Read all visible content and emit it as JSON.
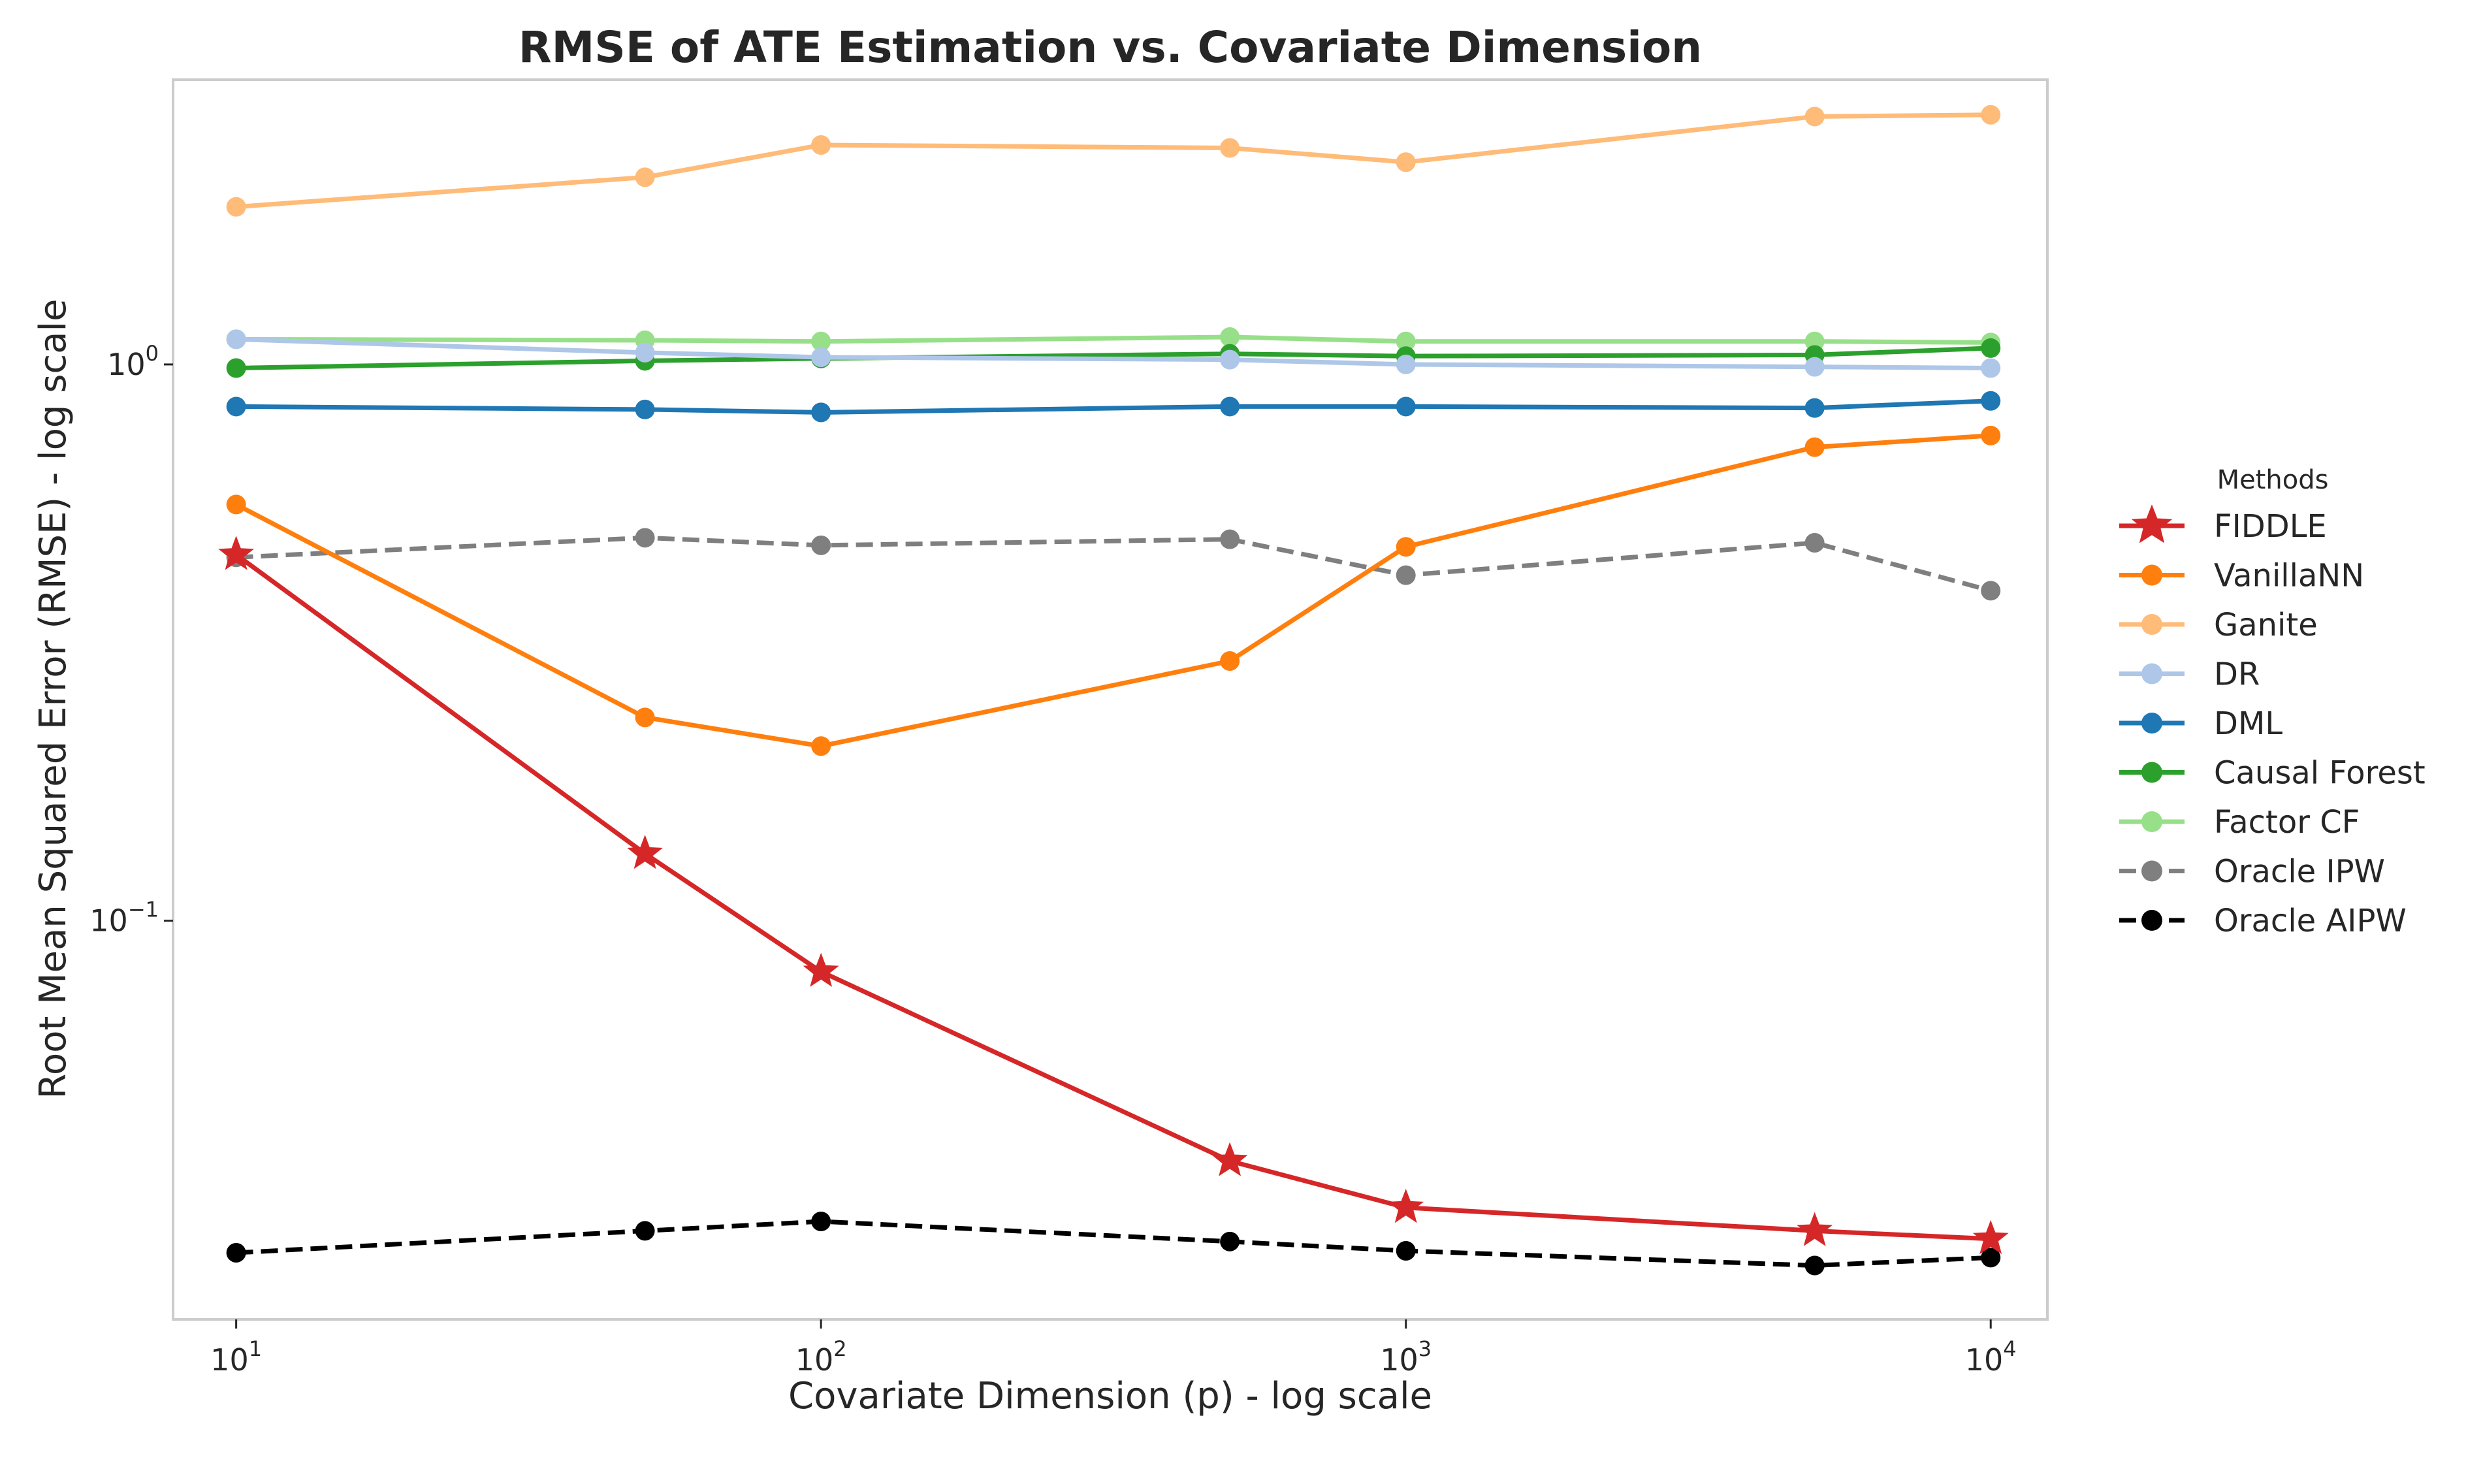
{
  "chart_data": {
    "type": "line",
    "title": "RMSE of ATE Estimation vs. Covariate Dimension",
    "xlabel": "Covariate Dimension (p) - log scale",
    "ylabel": "Root Mean Squared Error (RMSE) - log scale",
    "xscale": "log",
    "yscale": "log",
    "xlim": [
      7.8,
      12500
    ],
    "ylim": [
      0.0192,
      3.25
    ],
    "x": [
      10,
      50,
      100,
      500,
      1000,
      5000,
      10000
    ],
    "x_ticks": [
      {
        "value": 10,
        "base": "10",
        "exp": "1"
      },
      {
        "value": 100,
        "base": "10",
        "exp": "2"
      },
      {
        "value": 1000,
        "base": "10",
        "exp": "3"
      },
      {
        "value": 10000,
        "base": "10",
        "exp": "4"
      }
    ],
    "y_ticks": [
      {
        "value": 1,
        "base": "10",
        "exp": "0"
      },
      {
        "value": 0.1,
        "base": "10",
        "exp": "−1"
      }
    ],
    "grid": false,
    "legend": {
      "title": "Methods",
      "position": "right"
    },
    "series": [
      {
        "name": "FIDDLE",
        "color": "#d62728",
        "marker": "star",
        "dash": "solid",
        "values": [
          0.455,
          0.132,
          0.081,
          0.037,
          0.0305,
          0.0277,
          0.0268
        ]
      },
      {
        "name": "VanillaNN",
        "color": "#ff7f0e",
        "marker": "circle",
        "dash": "solid",
        "values": [
          0.56,
          0.232,
          0.206,
          0.293,
          0.47,
          0.71,
          0.745
        ]
      },
      {
        "name": "Ganite",
        "color": "#ffbb78",
        "marker": "circle",
        "dash": "solid",
        "values": [
          1.92,
          2.17,
          2.48,
          2.45,
          2.31,
          2.79,
          2.81
        ]
      },
      {
        "name": "DR",
        "color": "#aec7e8",
        "marker": "circle",
        "dash": "solid",
        "values": [
          1.11,
          1.05,
          1.03,
          1.02,
          1.0,
          0.99,
          0.985
        ]
      },
      {
        "name": "DML",
        "color": "#1f77b4",
        "marker": "circle",
        "dash": "solid",
        "values": [
          0.84,
          0.83,
          0.82,
          0.84,
          0.84,
          0.835,
          0.86
        ]
      },
      {
        "name": "Causal Forest",
        "color": "#2ca02c",
        "marker": "circle",
        "dash": "solid",
        "values": [
          0.985,
          1.015,
          1.025,
          1.045,
          1.035,
          1.04,
          1.07
        ]
      },
      {
        "name": "Factor CF",
        "color": "#98df8a",
        "marker": "circle",
        "dash": "solid",
        "values": [
          1.11,
          1.105,
          1.1,
          1.12,
          1.1,
          1.1,
          1.095
        ]
      },
      {
        "name": "Oracle IPW",
        "color": "#7f7f7f",
        "marker": "circle",
        "dash": "dashed",
        "values": [
          0.45,
          0.488,
          0.473,
          0.485,
          0.418,
          0.478,
          0.392
        ]
      },
      {
        "name": "Oracle AIPW",
        "color": "#000000",
        "marker": "circle",
        "dash": "dashed",
        "values": [
          0.0253,
          0.0277,
          0.0288,
          0.0265,
          0.0255,
          0.024,
          0.0248
        ]
      }
    ]
  }
}
